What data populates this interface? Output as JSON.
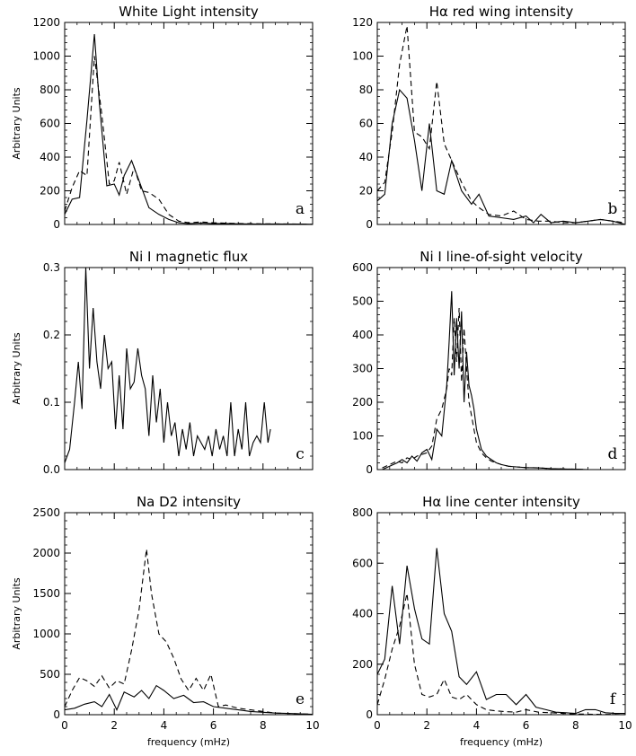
{
  "figure": {
    "xlabel": "frequency (mHz)",
    "ylabel": "Arbitrary Units"
  },
  "chart_data": [
    {
      "type": "line",
      "panel": "a",
      "title": "White Light intensity",
      "xlabel": "",
      "ylabel": "Arbitrary Units",
      "xlim": [
        0,
        10
      ],
      "ylim": [
        0,
        1200
      ],
      "xticks": [],
      "yticks": [
        0,
        200,
        400,
        600,
        800,
        1000,
        1200
      ],
      "series": [
        {
          "style": "solid",
          "x": [
            0,
            0.3,
            0.6,
            0.9,
            1.2,
            1.4,
            1.7,
            2.0,
            2.2,
            2.4,
            2.7,
            3.0,
            3.4,
            3.8,
            4.2,
            4.6,
            5.0,
            5.5,
            6.0,
            6.5,
            7.0,
            7.5,
            8.0,
            8.5,
            9.0,
            9.5,
            10.0
          ],
          "y": [
            60,
            150,
            160,
            620,
            1130,
            720,
            230,
            240,
            175,
            290,
            380,
            260,
            100,
            60,
            30,
            10,
            5,
            8,
            5,
            6,
            4,
            3,
            2,
            3,
            2,
            2,
            1
          ]
        },
        {
          "style": "dashed",
          "x": [
            0,
            0.3,
            0.6,
            0.9,
            1.2,
            1.5,
            1.8,
            2.0,
            2.2,
            2.5,
            2.8,
            3.1,
            3.4,
            3.8,
            4.2,
            4.6,
            5.0,
            5.5,
            6.0,
            6.5,
            7.0,
            7.5,
            8.0,
            8.5,
            9.0,
            9.5,
            10.0
          ],
          "y": [
            80,
            220,
            320,
            290,
            1000,
            650,
            240,
            260,
            370,
            180,
            340,
            200,
            190,
            150,
            60,
            20,
            10,
            15,
            10,
            8,
            6,
            5,
            4,
            3,
            3,
            2,
            1
          ]
        }
      ]
    },
    {
      "type": "line",
      "panel": "b",
      "title": "Hα red wing intensity",
      "xlabel": "",
      "ylabel": "",
      "xlim": [
        0,
        10
      ],
      "ylim": [
        0,
        120
      ],
      "xticks": [],
      "yticks": [
        0,
        20,
        40,
        60,
        80,
        100,
        120
      ],
      "series": [
        {
          "style": "solid",
          "x": [
            0,
            0.3,
            0.6,
            0.9,
            1.2,
            1.5,
            1.8,
            2.1,
            2.4,
            2.7,
            3.0,
            3.4,
            3.8,
            4.1,
            4.5,
            5.0,
            5.5,
            6.0,
            6.3,
            6.6,
            7.0,
            7.5,
            8.0,
            8.5,
            9.0,
            9.5,
            10.0
          ],
          "y": [
            14,
            18,
            60,
            80,
            75,
            50,
            20,
            60,
            20,
            18,
            38,
            20,
            12,
            18,
            5,
            4,
            3,
            5,
            1,
            6,
            1,
            2,
            1,
            2,
            3,
            2,
            0
          ]
        },
        {
          "style": "dashed",
          "x": [
            0,
            0.3,
            0.6,
            0.9,
            1.2,
            1.5,
            1.8,
            2.1,
            2.4,
            2.7,
            3.0,
            3.4,
            3.8,
            4.1,
            4.5,
            5.0,
            5.5,
            6.0,
            6.5,
            7.0,
            7.5,
            8.0,
            8.5,
            9.0,
            9.5,
            10.0
          ],
          "y": [
            20,
            25,
            55,
            95,
            118,
            55,
            52,
            45,
            85,
            48,
            38,
            25,
            14,
            10,
            6,
            5,
            8,
            3,
            2,
            2,
            1,
            1,
            2,
            3,
            2,
            1
          ]
        }
      ]
    },
    {
      "type": "line",
      "panel": "c",
      "title": "Ni I  magnetic flux",
      "xlabel": "",
      "ylabel": "Arbitrary Units",
      "xlim": [
        0,
        10
      ],
      "ylim": [
        0,
        0.3
      ],
      "xticks": [],
      "yticks": [
        0.0,
        0.1,
        0.2,
        0.3
      ],
      "series": [
        {
          "style": "solid",
          "x": [
            0,
            0.2,
            0.4,
            0.55,
            0.7,
            0.85,
            1.0,
            1.15,
            1.3,
            1.45,
            1.6,
            1.75,
            1.9,
            2.05,
            2.2,
            2.35,
            2.5,
            2.65,
            2.8,
            2.95,
            3.1,
            3.25,
            3.4,
            3.55,
            3.7,
            3.85,
            4.0,
            4.15,
            4.3,
            4.45,
            4.6,
            4.75,
            4.9,
            5.05,
            5.2,
            5.35,
            5.5,
            5.65,
            5.8,
            5.95,
            6.1,
            6.25,
            6.4,
            6.55,
            6.7,
            6.85,
            7.0,
            7.15,
            7.3,
            7.45,
            7.6,
            7.75,
            7.9,
            8.05,
            8.2,
            8.3
          ],
          "y": [
            0.01,
            0.03,
            0.1,
            0.16,
            0.09,
            0.3,
            0.15,
            0.24,
            0.16,
            0.12,
            0.2,
            0.15,
            0.16,
            0.06,
            0.14,
            0.06,
            0.18,
            0.12,
            0.13,
            0.18,
            0.14,
            0.12,
            0.05,
            0.14,
            0.07,
            0.12,
            0.04,
            0.1,
            0.05,
            0.07,
            0.02,
            0.06,
            0.03,
            0.07,
            0.02,
            0.05,
            0.04,
            0.03,
            0.05,
            0.02,
            0.06,
            0.03,
            0.05,
            0.02,
            0.1,
            0.02,
            0.06,
            0.03,
            0.1,
            0.02,
            0.04,
            0.05,
            0.04,
            0.1,
            0.04,
            0.06
          ]
        }
      ]
    },
    {
      "type": "line",
      "panel": "d",
      "title": "Ni I line-of-sight velocity",
      "xlabel": "",
      "ylabel": "",
      "xlim": [
        0,
        10
      ],
      "ylim": [
        0,
        600
      ],
      "xticks": [],
      "yticks": [
        0,
        100,
        200,
        300,
        400,
        500,
        600
      ],
      "series": [
        {
          "style": "solid",
          "x": [
            0.2,
            0.5,
            0.8,
            1.0,
            1.2,
            1.4,
            1.6,
            1.8,
            2.0,
            2.2,
            2.4,
            2.6,
            2.8,
            2.9,
            3.0,
            3.1,
            3.2,
            3.3,
            3.4,
            3.5,
            3.6,
            3.7,
            3.8,
            3.9,
            4.0,
            4.2,
            4.4,
            4.6,
            4.8,
            5.0,
            5.3,
            5.6,
            6.0,
            6.5,
            7.0,
            7.5,
            8.0,
            8.5
          ],
          "y": [
            0,
            10,
            20,
            30,
            20,
            40,
            25,
            50,
            60,
            30,
            120,
            100,
            250,
            380,
            530,
            280,
            450,
            300,
            470,
            200,
            350,
            250,
            220,
            180,
            120,
            60,
            40,
            30,
            20,
            15,
            10,
            8,
            6,
            5,
            3,
            2,
            1,
            0
          ]
        },
        {
          "style": "dashed",
          "x": [
            0.2,
            0.5,
            0.8,
            1.0,
            1.2,
            1.4,
            1.6,
            1.8,
            2.0,
            2.2,
            2.4,
            2.6,
            2.8,
            2.9,
            3.0,
            3.1,
            3.2,
            3.3,
            3.4,
            3.5,
            3.6,
            3.7,
            3.8,
            3.9,
            4.0,
            4.2,
            4.4,
            4.6,
            4.8,
            5.0,
            5.3,
            5.6,
            6.0,
            6.5,
            7.0,
            7.5,
            8.0,
            8.5
          ],
          "y": [
            5,
            15,
            25,
            20,
            35,
            30,
            40,
            45,
            50,
            70,
            150,
            180,
            240,
            300,
            280,
            450,
            320,
            480,
            260,
            420,
            300,
            200,
            160,
            120,
            80,
            50,
            35,
            25,
            20,
            15,
            10,
            8,
            6,
            5,
            3,
            2,
            1,
            0
          ]
        }
      ]
    },
    {
      "type": "line",
      "panel": "e",
      "title": "Na D2 intensity",
      "xlabel": "frequency (mHz)",
      "ylabel": "Arbitrary Units",
      "xlim": [
        0,
        10
      ],
      "ylim": [
        0,
        2500
      ],
      "xticks": [
        0,
        2,
        4,
        6,
        8,
        10
      ],
      "yticks": [
        0,
        500,
        1000,
        1500,
        2000,
        2500
      ],
      "series": [
        {
          "style": "solid",
          "x": [
            0,
            0.4,
            0.8,
            1.2,
            1.5,
            1.8,
            2.1,
            2.4,
            2.8,
            3.1,
            3.4,
            3.7,
            4.0,
            4.4,
            4.8,
            5.2,
            5.6,
            6.0,
            6.5,
            7.0,
            7.5,
            8.0,
            8.5,
            9.0,
            9.5,
            10.0
          ],
          "y": [
            60,
            80,
            130,
            160,
            100,
            250,
            60,
            280,
            220,
            300,
            200,
            360,
            300,
            200,
            240,
            150,
            160,
            100,
            80,
            60,
            40,
            30,
            20,
            15,
            10,
            5
          ]
        },
        {
          "style": "dashed",
          "x": [
            0,
            0.3,
            0.6,
            0.9,
            1.2,
            1.5,
            1.8,
            2.1,
            2.4,
            2.7,
            3.0,
            3.3,
            3.5,
            3.8,
            4.1,
            4.4,
            4.7,
            5.0,
            5.3,
            5.6,
            5.9,
            6.2,
            6.5,
            7.0,
            7.5,
            8.0,
            8.5,
            9.0,
            9.5,
            10.0
          ],
          "y": [
            100,
            300,
            460,
            420,
            350,
            480,
            330,
            420,
            380,
            800,
            1300,
            2050,
            1500,
            1000,
            900,
            700,
            440,
            300,
            450,
            300,
            500,
            100,
            120,
            80,
            60,
            40,
            20,
            15,
            10,
            5
          ]
        }
      ]
    },
    {
      "type": "line",
      "panel": "f",
      "title": "Hα line center intensity",
      "xlabel": "frequency (mHz)",
      "ylabel": "",
      "xlim": [
        0,
        10
      ],
      "ylim": [
        0,
        800
      ],
      "xticks": [
        0,
        2,
        4,
        6,
        8,
        10
      ],
      "yticks": [
        0,
        200,
        400,
        600,
        800
      ],
      "series": [
        {
          "style": "solid",
          "x": [
            0,
            0.3,
            0.6,
            0.9,
            1.2,
            1.5,
            1.8,
            2.1,
            2.4,
            2.7,
            3.0,
            3.3,
            3.6,
            4.0,
            4.4,
            4.8,
            5.2,
            5.6,
            6.0,
            6.4,
            6.8,
            7.2,
            7.6,
            8.0,
            8.4,
            8.8,
            9.2,
            9.6,
            10.0
          ],
          "y": [
            160,
            220,
            510,
            280,
            590,
            420,
            300,
            280,
            660,
            400,
            330,
            150,
            120,
            170,
            60,
            80,
            80,
            40,
            80,
            30,
            20,
            10,
            8,
            5,
            20,
            20,
            8,
            5,
            5
          ]
        },
        {
          "style": "dashed",
          "x": [
            0,
            0.3,
            0.6,
            0.9,
            1.2,
            1.5,
            1.8,
            2.1,
            2.4,
            2.7,
            3.0,
            3.3,
            3.6,
            4.0,
            4.4,
            4.8,
            5.2,
            5.6,
            6.0,
            6.5,
            7.0,
            7.5,
            8.0,
            8.5,
            9.0,
            9.5,
            10.0
          ],
          "y": [
            40,
            140,
            260,
            350,
            480,
            200,
            80,
            70,
            80,
            140,
            70,
            60,
            80,
            40,
            20,
            15,
            12,
            10,
            20,
            10,
            8,
            5,
            3,
            2,
            1,
            1,
            0
          ]
        }
      ]
    }
  ]
}
